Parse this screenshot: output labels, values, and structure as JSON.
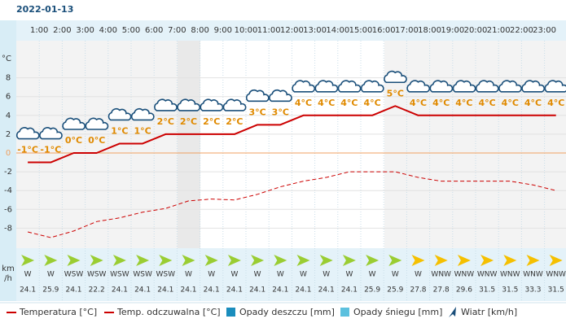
{
  "chart_data": {
    "type": "line",
    "title": "2022-01-13",
    "y_label": "°C",
    "hour_labels": [
      "1:00",
      "2:00",
      "3:00",
      "4:00",
      "5:00",
      "6:00",
      "7:00",
      "8:00",
      "9:00",
      "10:00",
      "11:00",
      "12:00",
      "13:00",
      "14:00",
      "15:00",
      "16:00",
      "17:00",
      "18:00",
      "19:00",
      "20:00",
      "21:00",
      "22:00",
      "23:00"
    ],
    "ylim": [
      -10,
      12
    ],
    "yticks": [
      -8,
      -6,
      -4,
      -2,
      0,
      2,
      4,
      6,
      8
    ],
    "zero_color": "#f0a060",
    "series": [
      {
        "name": "Temperatura [°C]",
        "color": "#cc0000",
        "values": [
          -1,
          -1,
          0,
          0,
          1,
          1,
          2,
          2,
          2,
          2,
          3,
          3,
          4,
          4,
          4,
          4,
          5,
          4,
          4,
          4,
          4,
          4,
          4,
          4
        ],
        "value_labels": [
          "-1°C",
          "-1°C",
          "0°C",
          "0°C",
          "1°C",
          "1°C",
          "2°C",
          "2°C",
          "2°C",
          "2°C",
          "3°C",
          "3°C",
          "4°C",
          "4°C",
          "4°C",
          "4°C",
          "5°C",
          "4°C",
          "4°C",
          "4°C",
          "4°C",
          "4°C",
          "4°C",
          "4°C"
        ]
      },
      {
        "name": "Temp. odczuwalna [°C]",
        "color": "#cc0000",
        "dashed": true,
        "values": [
          -8.4,
          -9.0,
          -8.3,
          -7.3,
          -6.9,
          -6.3,
          -5.9,
          -5.1,
          -4.9,
          -5.0,
          -4.4,
          -3.6,
          -3.0,
          -2.6,
          -2.0,
          -2.0,
          -2.0,
          -2.6,
          -3.0,
          -3.0,
          -3.0,
          -3.0,
          -3.4,
          -4.0
        ]
      }
    ],
    "extra_legend": [
      {
        "name": "Opady deszczu [mm]",
        "color": "#1a8dbd"
      },
      {
        "name": "Opady śniegu [mm]",
        "color": "#5bc0de"
      },
      {
        "name": "Wiatr [km/h]",
        "color": "#1a4f7a"
      }
    ],
    "wind": {
      "unit_top": "km",
      "unit_bottom": "/h",
      "directions": [
        "W",
        "W",
        "WSW",
        "WSW",
        "WSW",
        "WSW",
        "WSW",
        "W",
        "W",
        "W",
        "W",
        "W",
        "W",
        "W",
        "W",
        "W",
        "W",
        "W",
        "WNW",
        "WNW",
        "WNW",
        "WNW",
        "WNW",
        "WNW"
      ],
      "speeds": [
        24.1,
        25.9,
        24.1,
        22.2,
        24.1,
        24.1,
        24.1,
        24.1,
        24.1,
        24.1,
        24.1,
        24.1,
        24.1,
        24.1,
        24.1,
        25.9,
        25.9,
        27.8,
        27.8,
        29.6,
        31.5,
        31.5,
        33.3,
        31.5
      ],
      "colors": [
        "#9acd32",
        "#9acd32",
        "#9acd32",
        "#9acd32",
        "#9acd32",
        "#9acd32",
        "#9acd32",
        "#9acd32",
        "#9acd32",
        "#9acd32",
        "#9acd32",
        "#9acd32",
        "#9acd32",
        "#9acd32",
        "#9acd32",
        "#9acd32",
        "#9acd32",
        "#f5c000",
        "#f5c000",
        "#f5c000",
        "#f5c000",
        "#f5c000",
        "#f5c000",
        "#f5c000"
      ]
    }
  }
}
